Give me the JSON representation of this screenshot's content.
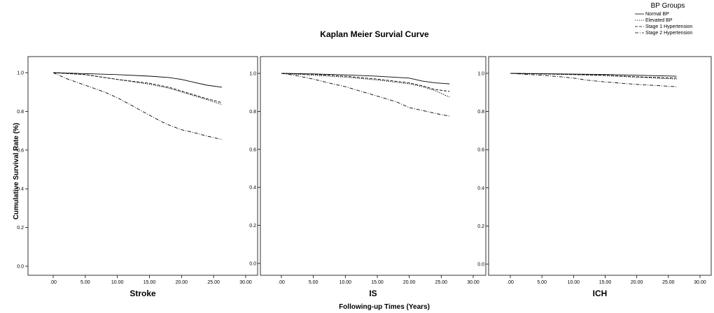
{
  "chart_data": {
    "type": "line",
    "title": "Kaplan Meier Survial Curve",
    "ylabel": "Cumulative Survival Rate (%)",
    "xlabel": "Following-up Times (Years)",
    "legend": {
      "title": "BP Groups",
      "placement": "top-right",
      "items": [
        {
          "label": "Normal BP",
          "dash": "solid"
        },
        {
          "label": "Elevated BP",
          "dash": "dotted"
        },
        {
          "label": "Stage 1 Hypertension",
          "dash": "dashed"
        },
        {
          "label": "Stage 2 Hypertension",
          "dash": "dashdot"
        }
      ]
    },
    "x_ticks": [
      ".00",
      "5.00",
      "10.00",
      "15.00",
      "20.00",
      "25.00",
      "30.00"
    ],
    "y_ticks": [
      "0.0",
      "0.2",
      "0.4",
      "0.6",
      "0.8",
      "1.0"
    ],
    "xlim": [
      0,
      30
    ],
    "ylim": [
      0,
      1.0
    ],
    "panels": [
      {
        "name": "Stroke",
        "series": [
          {
            "dash": "solid",
            "x": [
              0,
              5,
              10,
              15,
              18,
              20,
              22,
              24,
              26.3
            ],
            "y": [
              1.0,
              0.995,
              0.99,
              0.982,
              0.975,
              0.965,
              0.95,
              0.935,
              0.925
            ]
          },
          {
            "dash": "dotted",
            "x": [
              0,
              5,
              10,
              15,
              18,
              20,
              22,
              24,
              26.3
            ],
            "y": [
              1.0,
              0.99,
              0.965,
              0.94,
              0.92,
              0.9,
              0.88,
              0.86,
              0.835
            ]
          },
          {
            "dash": "dashed",
            "x": [
              0,
              5,
              10,
              15,
              18,
              20,
              22,
              24,
              26.3
            ],
            "y": [
              1.0,
              0.99,
              0.965,
              0.945,
              0.925,
              0.905,
              0.885,
              0.865,
              0.845
            ]
          },
          {
            "dash": "dashdot",
            "x": [
              0,
              2,
              5,
              8,
              10,
              12,
              15,
              17,
              18,
              20,
              22,
              24,
              26.3
            ],
            "y": [
              1.0,
              0.97,
              0.935,
              0.9,
              0.87,
              0.835,
              0.78,
              0.745,
              0.73,
              0.705,
              0.69,
              0.672,
              0.655
            ]
          }
        ]
      },
      {
        "name": "IS",
        "series": [
          {
            "dash": "solid",
            "x": [
              0,
              5,
              10,
              15,
              20,
              22,
              24,
              26.3
            ],
            "y": [
              1.0,
              0.997,
              0.992,
              0.985,
              0.975,
              0.96,
              0.95,
              0.945
            ]
          },
          {
            "dash": "dotted",
            "x": [
              0,
              5,
              10,
              15,
              20,
              22,
              24,
              26.3
            ],
            "y": [
              1.0,
              0.99,
              0.98,
              0.965,
              0.945,
              0.93,
              0.91,
              0.875
            ]
          },
          {
            "dash": "dashed",
            "x": [
              0,
              5,
              10,
              15,
              20,
              22,
              24,
              26.3
            ],
            "y": [
              1.0,
              0.995,
              0.985,
              0.97,
              0.95,
              0.935,
              0.915,
              0.905
            ]
          },
          {
            "dash": "dashdot",
            "x": [
              0,
              2,
              5,
              8,
              10,
              12,
              15,
              18,
              20,
              22,
              24,
              26.3
            ],
            "y": [
              1.0,
              0.99,
              0.97,
              0.945,
              0.93,
              0.91,
              0.88,
              0.85,
              0.82,
              0.805,
              0.79,
              0.775
            ]
          }
        ]
      },
      {
        "name": "ICH",
        "series": [
          {
            "dash": "solid",
            "x": [
              0,
              5,
              10,
              15,
              20,
              26.3
            ],
            "y": [
              1.0,
              0.998,
              0.996,
              0.994,
              0.99,
              0.985
            ]
          },
          {
            "dash": "dotted",
            "x": [
              0,
              5,
              10,
              15,
              20,
              26.3
            ],
            "y": [
              1.0,
              0.997,
              0.993,
              0.988,
              0.98,
              0.97
            ]
          },
          {
            "dash": "dashed",
            "x": [
              0,
              5,
              10,
              15,
              20,
              26.3
            ],
            "y": [
              1.0,
              0.997,
              0.994,
              0.99,
              0.982,
              0.975
            ]
          },
          {
            "dash": "dashdot",
            "x": [
              0,
              5,
              8,
              10,
              12,
              15,
              20,
              26.3
            ],
            "y": [
              1.0,
              0.99,
              0.982,
              0.975,
              0.965,
              0.955,
              0.942,
              0.93
            ]
          }
        ]
      }
    ]
  }
}
